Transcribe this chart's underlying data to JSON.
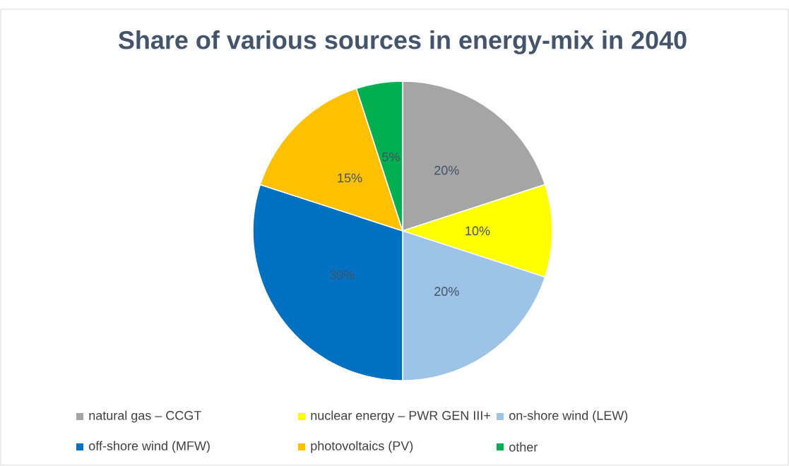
{
  "chart_data": {
    "type": "pie",
    "title": "Share of various sources in energy-mix in 2040",
    "categories": [
      "natural gas – CCGT",
      "nuclear energy – PWR GEN III+",
      "on-shore wind (LEW)",
      "off-shore wind (MFW)",
      "photovoltaics (PV)",
      "other"
    ],
    "values": [
      20,
      10,
      20,
      30,
      15,
      5
    ],
    "value_labels": [
      "20%",
      "10%",
      "20%",
      "30%",
      "15%",
      "5%"
    ],
    "colors": [
      "#a5a5a5",
      "#ffff00",
      "#9dc3e6",
      "#0070c0",
      "#ffc000",
      "#00b050"
    ],
    "legend": "bottom"
  }
}
